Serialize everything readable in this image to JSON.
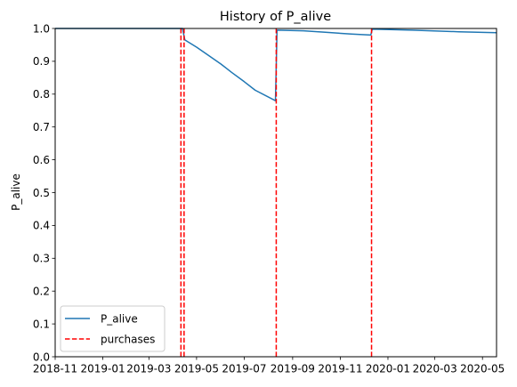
{
  "chart_data": {
    "type": "line",
    "title": "History of P_alive",
    "xlabel": "",
    "ylabel": "P_alive",
    "xlim": [
      "2018-11-01",
      "2020-05-19"
    ],
    "ylim": [
      0,
      1
    ],
    "x_ticks": [
      "2018-11",
      "2019-01",
      "2019-03",
      "2019-05",
      "2019-07",
      "2019-09",
      "2019-11",
      "2020-01",
      "2020-03",
      "2020-05"
    ],
    "x_tick_dates": [
      "2018-11-01",
      "2019-01-01",
      "2019-03-01",
      "2019-05-01",
      "2019-07-01",
      "2019-09-01",
      "2019-11-01",
      "2020-01-01",
      "2020-03-01",
      "2020-05-01"
    ],
    "y_ticks": [
      "0.0",
      "0.1",
      "0.2",
      "0.3",
      "0.4",
      "0.5",
      "0.6",
      "0.7",
      "0.8",
      "0.9",
      "1.0"
    ],
    "y_tick_values": [
      0,
      0.1,
      0.2,
      0.3,
      0.4,
      0.5,
      0.6,
      0.7,
      0.8,
      0.9,
      1.0
    ],
    "grid": false,
    "legend_position": "lower-left",
    "series": [
      {
        "name": "P_alive",
        "color": "#1f77b4",
        "style": "solid",
        "points": [
          [
            "2018-11-01",
            1.0
          ],
          [
            "2019-04-13",
            1.0
          ],
          [
            "2019-04-16",
            0.965
          ],
          [
            "2019-05-01",
            0.943
          ],
          [
            "2019-05-15",
            0.92
          ],
          [
            "2019-06-01",
            0.892
          ],
          [
            "2019-06-15",
            0.866
          ],
          [
            "2019-07-01",
            0.838
          ],
          [
            "2019-07-15",
            0.812
          ],
          [
            "2019-08-10",
            0.78
          ],
          [
            "2019-08-12",
            0.995
          ],
          [
            "2019-09-15",
            0.993
          ],
          [
            "2019-10-15",
            0.988
          ],
          [
            "2019-11-15",
            0.983
          ],
          [
            "2019-12-10",
            0.98
          ],
          [
            "2019-12-12",
            0.998
          ],
          [
            "2020-02-01",
            0.995
          ],
          [
            "2020-04-01",
            0.99
          ],
          [
            "2020-05-19",
            0.987
          ]
        ]
      },
      {
        "name": "purchases",
        "color": "#ff0000",
        "style": "dashed",
        "dates": [
          "2019-04-11",
          "2019-04-15",
          "2019-08-11",
          "2019-12-11"
        ]
      }
    ]
  }
}
